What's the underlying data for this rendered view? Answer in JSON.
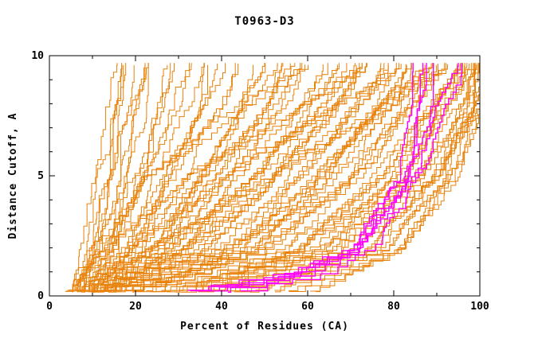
{
  "chart_data": {
    "type": "line",
    "title": "T0963-D3",
    "xlabel": "Percent of Residues (CA)",
    "ylabel": "Distance Cutoff, A",
    "xlim": [
      0,
      100
    ],
    "ylim": [
      0,
      10
    ],
    "x_major_ticks": [
      0,
      20,
      40,
      60,
      80,
      100
    ],
    "x_minor_step": 10,
    "y_major_ticks": [
      0,
      5,
      10
    ],
    "y_minor_step": 1,
    "grid": false,
    "legend": "none",
    "axis_color": "#000000",
    "background": "#FFFFFF",
    "series_groups": [
      {
        "name": "model-curves",
        "color": "#E8820A",
        "width": 1,
        "passes": 2,
        "anchor_y": [
          0.3,
          2,
          5,
          8,
          9.6
        ],
        "curves": [
          [
            5,
            8,
            11,
            14,
            16
          ],
          [
            5,
            9,
            13,
            16,
            17
          ],
          [
            6,
            11,
            15,
            17,
            18
          ],
          [
            6,
            12,
            16,
            19,
            21
          ],
          [
            7,
            13,
            18,
            22,
            24
          ],
          [
            7,
            14,
            20,
            25,
            27
          ],
          [
            8,
            15,
            22,
            28,
            31
          ],
          [
            8,
            16,
            24,
            31,
            34
          ],
          [
            9,
            17,
            26,
            34,
            37
          ],
          [
            9,
            19,
            28,
            37,
            41
          ],
          [
            10,
            20,
            30,
            40,
            44
          ],
          [
            10,
            22,
            33,
            43,
            48
          ],
          [
            11,
            23,
            35,
            46,
            51
          ],
          [
            11,
            25,
            37,
            49,
            54
          ],
          [
            12,
            26,
            40,
            52,
            57
          ],
          [
            12,
            28,
            42,
            55,
            60
          ],
          [
            13,
            29,
            45,
            58,
            63
          ],
          [
            13,
            31,
            47,
            60,
            66
          ],
          [
            14,
            33,
            49,
            63,
            69
          ],
          [
            15,
            34,
            52,
            66,
            72
          ],
          [
            15,
            36,
            54,
            68,
            74
          ],
          [
            16,
            38,
            56,
            71,
            77
          ],
          [
            17,
            40,
            59,
            73,
            79
          ],
          [
            18,
            42,
            61,
            75,
            81
          ],
          [
            19,
            44,
            63,
            77,
            83
          ],
          [
            20,
            46,
            65,
            79,
            85
          ],
          [
            21,
            48,
            67,
            81,
            87
          ],
          [
            23,
            50,
            70,
            83,
            89
          ],
          [
            24,
            52,
            72,
            84,
            91
          ],
          [
            26,
            54,
            74,
            86,
            93
          ],
          [
            28,
            56,
            76,
            88,
            94
          ],
          [
            30,
            58,
            78,
            89,
            95
          ],
          [
            32,
            60,
            80,
            91,
            96
          ],
          [
            34,
            63,
            82,
            92,
            97
          ],
          [
            36,
            65,
            83,
            94,
            98
          ],
          [
            38,
            67,
            85,
            95,
            99
          ],
          [
            41,
            70,
            87,
            96,
            100
          ],
          [
            44,
            72,
            88,
            97,
            100
          ],
          [
            48,
            75,
            90,
            98,
            100
          ],
          [
            52,
            78,
            92,
            99,
            100
          ],
          [
            57,
            80,
            93,
            99,
            100
          ],
          [
            62,
            83,
            95,
            100,
            100
          ],
          [
            6,
            10,
            22,
            45,
            60
          ],
          [
            8,
            15,
            32,
            58,
            72
          ],
          [
            10,
            19,
            42,
            68,
            83
          ],
          [
            12,
            24,
            52,
            78,
            90
          ]
        ]
      },
      {
        "name": "highlighted-model-curves",
        "color": "#FF00FF",
        "width": 1.4,
        "passes": 1,
        "anchor_y": [
          0.3,
          1,
          2,
          5,
          8,
          9.6
        ],
        "curves": [
          [
            32,
            55,
            70,
            82,
            84,
            85
          ],
          [
            34,
            57,
            71,
            83,
            85,
            86
          ],
          [
            36,
            58,
            72,
            83,
            86,
            88
          ],
          [
            38,
            60,
            73,
            84,
            87,
            90
          ],
          [
            41,
            62,
            74,
            84,
            88,
            93
          ],
          [
            44,
            64,
            75,
            85,
            90,
            96
          ]
        ]
      }
    ]
  }
}
